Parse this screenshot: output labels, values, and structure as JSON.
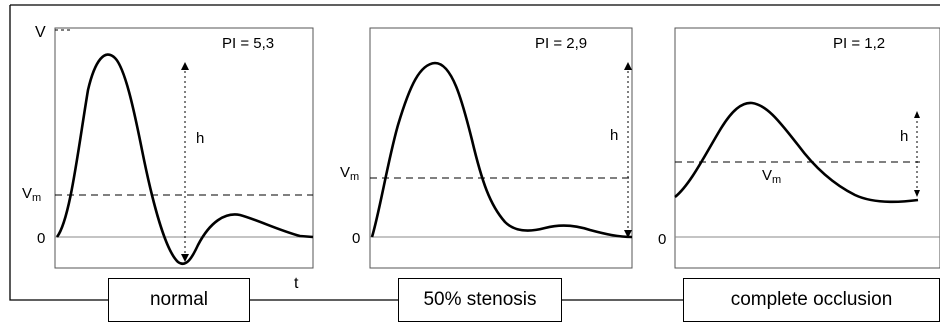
{
  "axis": {
    "v": "V",
    "t": "t",
    "zero": "0",
    "vm": "V",
    "vm_sub": "m",
    "h": "h"
  },
  "panels": [
    {
      "id": "normal",
      "pi_label": "PI = 5,3",
      "caption": "normal"
    },
    {
      "id": "stenosis",
      "pi_label": "PI = 2,9",
      "caption": "50% stenosis"
    },
    {
      "id": "occlusion",
      "pi_label": "PI = 1,2",
      "caption": "complete occlusion"
    }
  ],
  "colors": {
    "line": "#000000",
    "frame": "#555555",
    "background": "#ffffff"
  }
}
